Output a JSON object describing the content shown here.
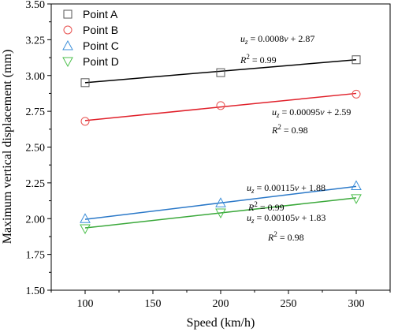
{
  "chart_data": {
    "type": "scatter",
    "xlabel": "Speed (km/h)",
    "ylabel": "Maximum vertical displacement (mm)",
    "xlim": [
      75,
      325
    ],
    "ylim": [
      1.5,
      3.5
    ],
    "x_ticks": [
      "100",
      "150",
      "200",
      "250",
      "300"
    ],
    "x_tick_values": [
      100,
      150,
      200,
      250,
      300
    ],
    "y_ticks": [
      "1.50",
      "1.75",
      "2.00",
      "2.25",
      "2.50",
      "2.75",
      "3.00",
      "3.25",
      "3.50"
    ],
    "y_tick_values": [
      1.5,
      1.75,
      2.0,
      2.25,
      2.5,
      2.75,
      3.0,
      3.25,
      3.5
    ],
    "grid": false,
    "legend_position": "top-left",
    "series": [
      {
        "name": "Point A",
        "marker": "square",
        "marker_color": "#555555",
        "line_color": "#000000",
        "x": [
          100,
          200,
          300
        ],
        "y": [
          2.95,
          3.02,
          3.11
        ],
        "fit": {
          "slope": 0.0008,
          "intercept": 2.87
        },
        "equation": {
          "var": "u",
          "sub": "z",
          "mid": " = 0.0008",
          "x": "v",
          "rest": " + 2.87"
        },
        "r2": {
          "var": "R",
          "sup": "2",
          "rest": " = 0.99"
        }
      },
      {
        "name": "Point B",
        "marker": "circle",
        "marker_color": "#e8514f",
        "line_color": "#e0202a",
        "x": [
          100,
          200,
          300
        ],
        "y": [
          2.68,
          2.79,
          2.87
        ],
        "fit": {
          "slope": 0.00095,
          "intercept": 2.59
        },
        "equation": {
          "var": "u",
          "sub": "z",
          "mid": " = 0.00095",
          "x": "v",
          "rest": " + 2.59"
        },
        "r2": {
          "var": "R",
          "sup": "2",
          "rest": " = 0.98"
        }
      },
      {
        "name": "Point C",
        "marker": "triangle-up",
        "marker_color": "#3d8fd9",
        "line_color": "#2a78c8",
        "x": [
          100,
          200,
          300
        ],
        "y": [
          2.0,
          2.11,
          2.23
        ],
        "fit": {
          "slope": 0.00115,
          "intercept": 1.88
        },
        "equation": {
          "var": "u",
          "sub": "z",
          "mid": " = 0.00115",
          "x": "v",
          "rest": " + 1.88"
        },
        "r2": {
          "var": "R",
          "sup": "2",
          "rest": " = 0.99"
        }
      },
      {
        "name": "Point D",
        "marker": "triangle-down",
        "marker_color": "#4cbf4c",
        "line_color": "#3aa83a",
        "x": [
          100,
          200,
          300
        ],
        "y": [
          1.93,
          2.04,
          2.14
        ],
        "fit": {
          "slope": 0.00105,
          "intercept": 1.83
        },
        "equation": {
          "var": "u",
          "sub": "z",
          "mid": " = 0.00105",
          "x": "v",
          "rest": " + 1.83"
        },
        "r2": {
          "var": "R",
          "sup": "2",
          "rest": " = 0.98"
        }
      }
    ]
  }
}
